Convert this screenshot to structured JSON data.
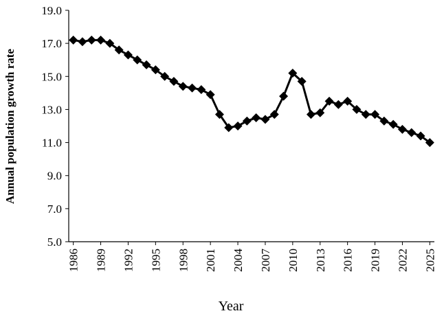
{
  "chart_data": {
    "type": "line",
    "y_label": "Annual population growth rate",
    "x_label": "Year",
    "x": [
      1986,
      1987,
      1988,
      1989,
      1990,
      1991,
      1992,
      1993,
      1994,
      1995,
      1996,
      1997,
      1998,
      1999,
      2000,
      2001,
      2002,
      2003,
      2004,
      2005,
      2006,
      2007,
      2008,
      2009,
      2010,
      2011,
      2012,
      2013,
      2014,
      2015,
      2016,
      2017,
      2018,
      2019,
      2020,
      2021,
      2022,
      2023,
      2024,
      2025
    ],
    "series": [
      {
        "color": "#000000",
        "values": [
          17.2,
          17.1,
          17.2,
          17.2,
          17.0,
          16.6,
          16.3,
          16.0,
          15.7,
          15.4,
          15.0,
          14.7,
          14.4,
          14.3,
          14.2,
          13.9,
          12.7,
          11.9,
          12.0,
          12.3,
          12.5,
          12.4,
          12.7,
          13.8,
          15.2,
          14.7,
          12.7,
          12.8,
          13.5,
          13.3,
          13.5,
          13.0,
          12.7,
          12.7,
          12.3,
          12.1,
          11.8,
          11.6,
          11.4,
          11.0
        ]
      }
    ],
    "xlim": [
      1985.5,
      2025.5
    ],
    "xticks": [
      1986,
      1989,
      1992,
      1995,
      1998,
      2001,
      2004,
      2007,
      2010,
      2013,
      2016,
      2019,
      2022,
      2025
    ],
    "ylim": [
      5,
      19
    ],
    "yticks": [
      {
        "value": 5,
        "label": "5.0"
      },
      {
        "value": 7,
        "label": "7.0"
      },
      {
        "value": 9,
        "label": "9.0"
      },
      {
        "value": 11,
        "label": "11.0"
      },
      {
        "value": 13,
        "label": "13.0"
      },
      {
        "value": 15,
        "label": "15.0"
      },
      {
        "value": 17,
        "label": "17.0"
      },
      {
        "value": 19,
        "label": "19.0"
      }
    ],
    "marker": "diamond"
  }
}
